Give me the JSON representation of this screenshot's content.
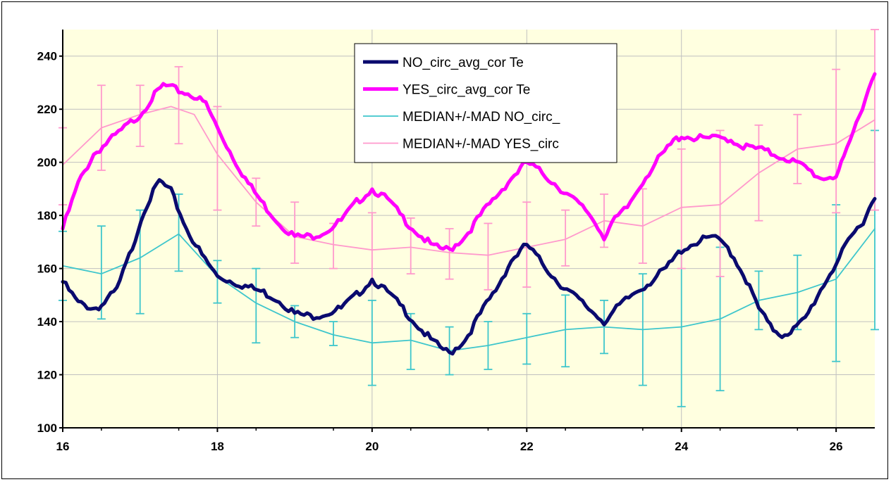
{
  "chart_data": {
    "type": "line",
    "xlim": [
      16,
      26.5
    ],
    "ylim": [
      100,
      250
    ],
    "x_ticks": [
      "16",
      "18",
      "20",
      "22",
      "24",
      "26"
    ],
    "y_ticks": [
      "100",
      "120",
      "140",
      "160",
      "180",
      "200",
      "220",
      "240"
    ],
    "grid": true,
    "legend_position": "top-center",
    "plot_background": "#ffffe0",
    "series": [
      {
        "name": "NO_circ_avg_cor Te",
        "color": "#0a0a6e",
        "points": [
          [
            16,
            155
          ],
          [
            16.2,
            147
          ],
          [
            16.4,
            145
          ],
          [
            16.5,
            146
          ],
          [
            16.7,
            152
          ],
          [
            16.9,
            168
          ],
          [
            17.05,
            182
          ],
          [
            17.25,
            193
          ],
          [
            17.4,
            189
          ],
          [
            17.6,
            175
          ],
          [
            17.8,
            165
          ],
          [
            18,
            157
          ],
          [
            18.2,
            155
          ],
          [
            18.4,
            153
          ],
          [
            18.6,
            151
          ],
          [
            18.8,
            148
          ],
          [
            19,
            143
          ],
          [
            19.2,
            142
          ],
          [
            19.4,
            143
          ],
          [
            19.6,
            145
          ],
          [
            19.8,
            150
          ],
          [
            20,
            156
          ],
          [
            20.2,
            151
          ],
          [
            20.4,
            145
          ],
          [
            20.6,
            138
          ],
          [
            20.8,
            132
          ],
          [
            21,
            128
          ],
          [
            21.2,
            133
          ],
          [
            21.4,
            143
          ],
          [
            21.6,
            152
          ],
          [
            21.8,
            163
          ],
          [
            22,
            169
          ],
          [
            22.2,
            162
          ],
          [
            22.4,
            155
          ],
          [
            22.6,
            150
          ],
          [
            22.8,
            145
          ],
          [
            23,
            140
          ],
          [
            23.2,
            146
          ],
          [
            23.4,
            151
          ],
          [
            23.6,
            155
          ],
          [
            23.8,
            160
          ],
          [
            24,
            167
          ],
          [
            24.2,
            170
          ],
          [
            24.4,
            172
          ],
          [
            24.6,
            168
          ],
          [
            24.8,
            158
          ],
          [
            25,
            145
          ],
          [
            25.15,
            138
          ],
          [
            25.3,
            135
          ],
          [
            25.45,
            137
          ],
          [
            25.6,
            141
          ],
          [
            25.8,
            152
          ],
          [
            26,
            162
          ],
          [
            26.2,
            172
          ],
          [
            26.35,
            178
          ],
          [
            26.5,
            187
          ]
        ]
      },
      {
        "name": "YES_circ_avg_cor Te",
        "color": "#ff00ff",
        "points": [
          [
            16,
            175
          ],
          [
            16.2,
            192
          ],
          [
            16.4,
            203
          ],
          [
            16.6,
            208
          ],
          [
            16.8,
            213
          ],
          [
            17,
            218
          ],
          [
            17.15,
            224
          ],
          [
            17.3,
            229
          ],
          [
            17.5,
            227
          ],
          [
            17.7,
            225
          ],
          [
            17.85,
            222
          ],
          [
            18,
            213
          ],
          [
            18.2,
            202
          ],
          [
            18.4,
            192
          ],
          [
            18.6,
            184
          ],
          [
            18.8,
            177
          ],
          [
            19,
            172
          ],
          [
            19.2,
            172
          ],
          [
            19.4,
            174
          ],
          [
            19.6,
            178
          ],
          [
            19.8,
            185
          ],
          [
            20,
            190
          ],
          [
            20.2,
            186
          ],
          [
            20.4,
            179
          ],
          [
            20.6,
            173
          ],
          [
            20.8,
            168
          ],
          [
            21,
            167
          ],
          [
            21.2,
            172
          ],
          [
            21.4,
            180
          ],
          [
            21.6,
            187
          ],
          [
            21.8,
            194
          ],
          [
            22,
            200
          ],
          [
            22.2,
            196
          ],
          [
            22.4,
            191
          ],
          [
            22.6,
            186
          ],
          [
            22.8,
            181
          ],
          [
            23,
            172
          ],
          [
            23.1,
            177
          ],
          [
            23.3,
            183
          ],
          [
            23.5,
            193
          ],
          [
            23.7,
            201
          ],
          [
            23.9,
            208
          ],
          [
            24,
            210
          ],
          [
            24.2,
            209
          ],
          [
            24.4,
            209
          ],
          [
            24.6,
            209
          ],
          [
            24.8,
            206
          ],
          [
            25,
            205
          ],
          [
            25.2,
            203
          ],
          [
            25.4,
            201
          ],
          [
            25.6,
            198
          ],
          [
            25.8,
            194
          ],
          [
            26,
            195
          ],
          [
            26.1,
            201
          ],
          [
            26.3,
            218
          ],
          [
            26.5,
            234
          ]
        ]
      },
      {
        "name": "MEDIAN+/-MAD NO_circ_",
        "color": "#3ec6cc",
        "points": [
          [
            16,
            161
          ],
          [
            16.5,
            158
          ],
          [
            17,
            164
          ],
          [
            17.5,
            173
          ],
          [
            18,
            157
          ],
          [
            18.5,
            147
          ],
          [
            19,
            140
          ],
          [
            19.5,
            135
          ],
          [
            20,
            132
          ],
          [
            20.5,
            133
          ],
          [
            21,
            129
          ],
          [
            21.5,
            131
          ],
          [
            22,
            134
          ],
          [
            22.5,
            137
          ],
          [
            23,
            138
          ],
          [
            23.5,
            137
          ],
          [
            24,
            138
          ],
          [
            24.5,
            141
          ],
          [
            25,
            148
          ],
          [
            25.5,
            151
          ],
          [
            26,
            156
          ],
          [
            26.5,
            175
          ]
        ],
        "error_bars": [
          [
            16,
            148,
            174
          ],
          [
            16.5,
            141,
            176
          ],
          [
            17,
            143,
            182
          ],
          [
            17.5,
            159,
            188
          ],
          [
            18,
            147,
            163
          ],
          [
            18.5,
            132,
            160
          ],
          [
            19,
            134,
            146
          ],
          [
            19.5,
            131,
            140
          ],
          [
            20,
            116,
            148
          ],
          [
            20.5,
            122,
            143
          ],
          [
            21,
            120,
            138
          ],
          [
            21.5,
            122,
            140
          ],
          [
            22,
            124,
            143
          ],
          [
            22.5,
            123,
            150
          ],
          [
            23,
            128,
            148
          ],
          [
            23.5,
            116,
            158
          ],
          [
            24,
            108,
            167
          ],
          [
            24.5,
            114,
            168
          ],
          [
            25,
            137,
            159
          ],
          [
            25.5,
            137,
            165
          ],
          [
            26,
            125,
            184
          ],
          [
            26.5,
            137,
            212
          ]
        ]
      },
      {
        "name": "MEDIAN+/-MAD YES_circ",
        "color": "#ff99cc",
        "points": [
          [
            16,
            199
          ],
          [
            16.5,
            213
          ],
          [
            17,
            218
          ],
          [
            17.4,
            221
          ],
          [
            17.7,
            218
          ],
          [
            18,
            203
          ],
          [
            18.5,
            185
          ],
          [
            19,
            172
          ],
          [
            19.5,
            169
          ],
          [
            20,
            167
          ],
          [
            20.5,
            168
          ],
          [
            21,
            166
          ],
          [
            21.5,
            165
          ],
          [
            22,
            168
          ],
          [
            22.5,
            171
          ],
          [
            23,
            178
          ],
          [
            23.5,
            176
          ],
          [
            24,
            183
          ],
          [
            24.5,
            184
          ],
          [
            25,
            196
          ],
          [
            25.5,
            205
          ],
          [
            26,
            207
          ],
          [
            26.5,
            216
          ]
        ],
        "error_bars": [
          [
            16,
            184,
            213
          ],
          [
            16.5,
            197,
            229
          ],
          [
            17,
            206,
            229
          ],
          [
            17.5,
            207,
            236
          ],
          [
            18,
            182,
            221
          ],
          [
            18.5,
            176,
            194
          ],
          [
            19,
            162,
            185
          ],
          [
            19.5,
            160,
            177
          ],
          [
            20,
            154,
            181
          ],
          [
            20.5,
            158,
            179
          ],
          [
            21,
            156,
            175
          ],
          [
            21.5,
            152,
            177
          ],
          [
            22,
            153,
            185
          ],
          [
            22.5,
            161,
            182
          ],
          [
            23,
            168,
            188
          ],
          [
            23.5,
            162,
            190
          ],
          [
            24,
            160,
            205
          ],
          [
            24.5,
            157,
            212
          ],
          [
            25,
            178,
            214
          ],
          [
            25.5,
            192,
            218
          ],
          [
            26,
            181,
            235
          ],
          [
            26.5,
            182,
            250
          ]
        ]
      }
    ]
  }
}
